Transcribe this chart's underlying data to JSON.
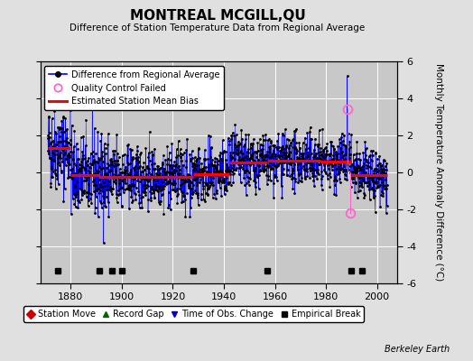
{
  "title": "MONTREAL MCGILL,QU",
  "subtitle": "Difference of Station Temperature Data from Regional Average",
  "ylabel": "Monthly Temperature Anomaly Difference (°C)",
  "xlabel_years": [
    1880,
    1900,
    1920,
    1940,
    1960,
    1980,
    2000
  ],
  "xlim": [
    1868,
    2008
  ],
  "ylim": [
    -6,
    6
  ],
  "yticks": [
    -6,
    -4,
    -2,
    0,
    2,
    4,
    6
  ],
  "background_color": "#e0e0e0",
  "plot_bg_color": "#c8c8c8",
  "grid_color": "#ffffff",
  "line_color": "#0000ff",
  "dot_color": "#000000",
  "bias_color": "#ff0000",
  "qc_color": "#ff66cc",
  "watermark": "Berkeley Earth",
  "seed": 42,
  "start_year": 1871,
  "end_year": 2004,
  "bias_segments": [
    {
      "x_start": 1871,
      "x_end": 1880,
      "bias": 1.3
    },
    {
      "x_start": 1880,
      "x_end": 1891,
      "bias": -0.15
    },
    {
      "x_start": 1891,
      "x_end": 1928,
      "bias": -0.25
    },
    {
      "x_start": 1928,
      "x_end": 1942,
      "bias": -0.1
    },
    {
      "x_start": 1942,
      "x_end": 1957,
      "bias": 0.55
    },
    {
      "x_start": 1957,
      "x_end": 1978,
      "bias": 0.65
    },
    {
      "x_start": 1978,
      "x_end": 1990,
      "bias": 0.6
    },
    {
      "x_start": 1990,
      "x_end": 2004,
      "bias": -0.15
    }
  ],
  "empirical_breaks": [
    1875,
    1891,
    1896,
    1900,
    1928,
    1957,
    1990,
    1994
  ],
  "qc_failed_years": [
    1988.5,
    1989.5
  ],
  "qc_failed_values": [
    3.4,
    -2.2
  ],
  "spike_year": 1988.3,
  "spike_value": 5.2
}
